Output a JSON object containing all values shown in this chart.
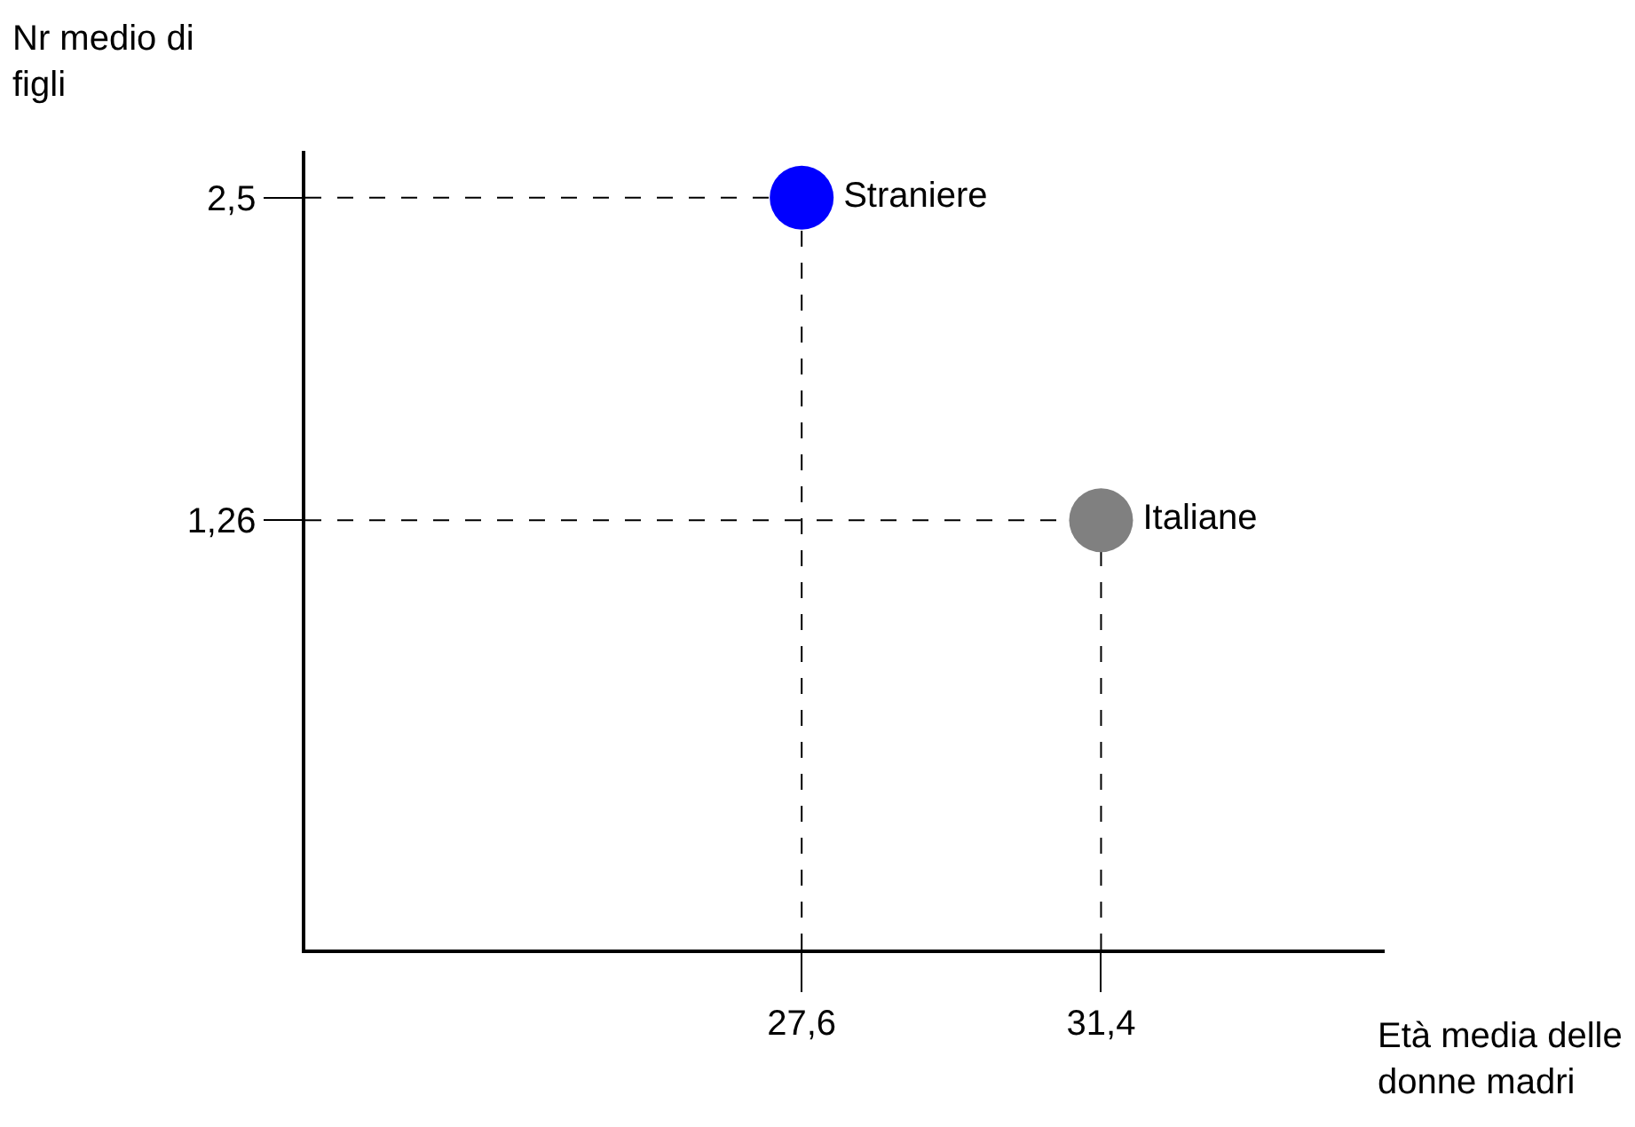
{
  "chart_data": {
    "type": "scatter",
    "xlabel": "Età media delle donne madri",
    "ylabel": "Nr medio di figli",
    "series": [
      {
        "name": "Straniere",
        "color": "#0000ff",
        "x": [
          27.6
        ],
        "values": [
          2.5
        ]
      },
      {
        "name": "Italiane",
        "color": "#808080",
        "x": [
          31.4
        ],
        "values": [
          1.26
        ]
      }
    ],
    "xlim": [
      21.3,
      35.0
    ],
    "ylim": [
      -0.39,
      2.68
    ],
    "xticks": [
      {
        "value": 27.6,
        "label": "27,6"
      },
      {
        "value": 31.4,
        "label": "31,4"
      }
    ],
    "yticks": [
      {
        "value": 2.5,
        "label": "2,5"
      },
      {
        "value": 1.26,
        "label": "1,26"
      }
    ],
    "legend": false,
    "marker": "circle"
  }
}
